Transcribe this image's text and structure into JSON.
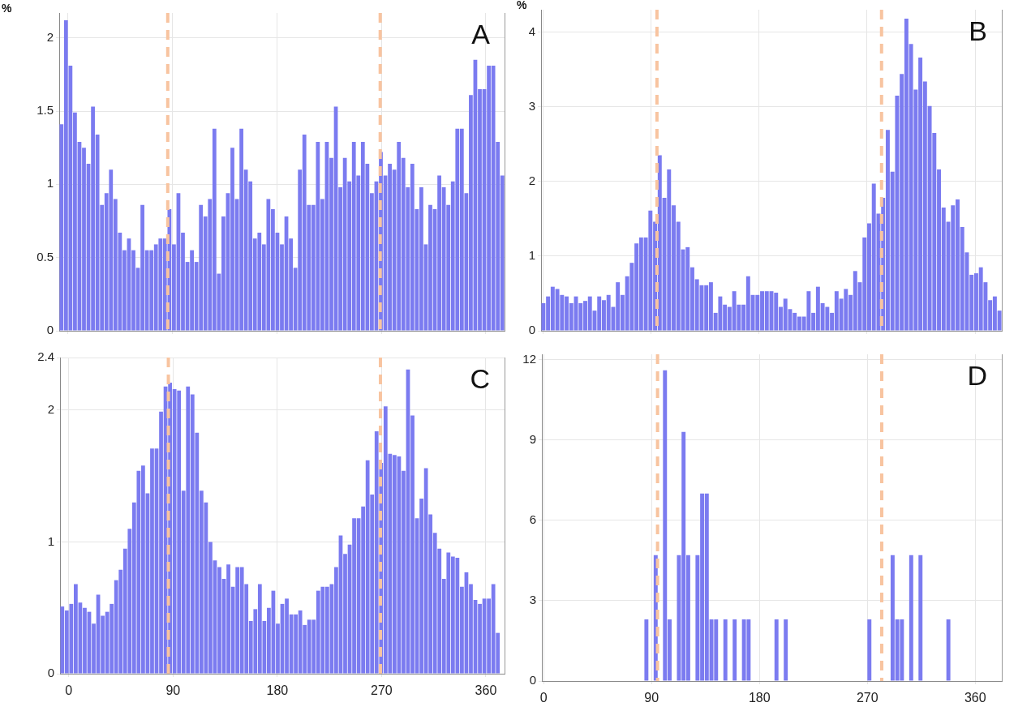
{
  "chart_data": [
    {
      "type": "histogram",
      "ylabel": "%",
      "annotations": [
        "A"
      ],
      "color": "#7b7bf0",
      "grid": true,
      "tick_labels": "y",
      "xlim": [
        -7.5,
        376.125
      ],
      "xticks": [
        0,
        90,
        180,
        270,
        360
      ],
      "ylim": [
        0,
        2.17
      ],
      "yticks": [
        0,
        0.5,
        1,
        1.5,
        2
      ],
      "ref_lines": [
        {
          "axis": "x",
          "value": 86,
          "color": "#f8c4a0",
          "line_style": "dashed"
        },
        {
          "axis": "x",
          "value": 269,
          "color": "#f8c4a0",
          "line_style": "dashed"
        }
      ],
      "bins": [
        -7.5,
        -3.625,
        0.25,
        4.125,
        8,
        11.875,
        15.75,
        19.625,
        23.5,
        27.375,
        31.25,
        35.125,
        39,
        42.875,
        46.75,
        50.625,
        54.5,
        58.375,
        62.25,
        66.125,
        70,
        73.875,
        77.75,
        81.625,
        85.5,
        89.375,
        93.25,
        97.125,
        101,
        104.875,
        108.75,
        112.625,
        116.5,
        120.375,
        124.25,
        128.125,
        132,
        135.875,
        139.75,
        143.625,
        147.5,
        151.375,
        155.25,
        159.125,
        163,
        166.875,
        170.75,
        174.625,
        178.5,
        182.375,
        186.25,
        190.125,
        194,
        197.875,
        201.75,
        205.625,
        209.5,
        213.375,
        217.25,
        221.125,
        225,
        228.875,
        232.75,
        236.625,
        240.5,
        244.375,
        248.25,
        252.125,
        256,
        259.875,
        263.75,
        267.625,
        271.5,
        275.375,
        279.25,
        283.125,
        287,
        290.875,
        294.75,
        298.625,
        302.5,
        306.375,
        310.25,
        314.125,
        318,
        321.875,
        325.75,
        329.625,
        333.5,
        337.375,
        341.25,
        345.125,
        349,
        352.875,
        356.75,
        360.625,
        364.5,
        368.375,
        372.25,
        376.125
      ],
      "values": [
        1.41,
        2.12,
        1.81,
        1.49,
        1.29,
        1.25,
        1.14,
        1.53,
        1.34,
        0.86,
        0.94,
        1.1,
        0.9,
        0.67,
        0.55,
        0.63,
        0.55,
        0.43,
        0.86,
        0.55,
        0.55,
        0.59,
        0.63,
        0.63,
        0.83,
        0.59,
        0.94,
        0.67,
        0.47,
        0.55,
        0.47,
        0.86,
        0.78,
        0.9,
        1.38,
        0.39,
        0.78,
        0.94,
        1.25,
        0.9,
        1.38,
        1.1,
        1.02,
        0.63,
        0.67,
        0.59,
        0.9,
        0.83,
        0.67,
        0.59,
        0.78,
        0.63,
        0.43,
        1.1,
        1.34,
        0.86,
        0.86,
        1.29,
        0.9,
        1.29,
        1.18,
        1.53,
        0.98,
        1.18,
        1.02,
        1.29,
        1.06,
        1.29,
        1.14,
        0.94,
        1.02,
        1.22,
        1.06,
        1.14,
        1.1,
        1.29,
        1.18,
        0.98,
        1.14,
        0.83,
        0.98,
        0.59,
        0.86,
        0.83,
        1.06,
        0.98,
        0.86,
        1.02,
        1.38,
        1.38,
        0.94,
        1.61,
        1.85,
        1.65,
        1.65,
        1.81,
        1.81,
        1.29,
        1.06
      ]
    },
    {
      "type": "histogram",
      "ylabel": "%",
      "annotations": [
        "B"
      ],
      "color": "#7b7bf0",
      "grid": true,
      "tick_labels": "y",
      "xlim": [
        -1.5,
        382.125
      ],
      "xticks": [
        0,
        90,
        180,
        270,
        360
      ],
      "ylim": [
        0,
        4.3
      ],
      "yticks": [
        0,
        1,
        2,
        3,
        4
      ],
      "ref_lines": [
        {
          "axis": "x",
          "value": 95,
          "color": "#f8c4a0",
          "line_style": "dashed"
        },
        {
          "axis": "x",
          "value": 282,
          "color": "#f8c4a0",
          "line_style": "dashed"
        }
      ],
      "bins": [
        -1.5,
        2.375,
        6.25,
        10.125,
        14,
        17.875,
        21.75,
        25.625,
        29.5,
        33.375,
        37.25,
        41.125,
        45,
        48.875,
        52.75,
        56.625,
        60.5,
        64.375,
        68.25,
        72.125,
        76,
        79.875,
        83.75,
        87.625,
        91.5,
        95.375,
        99.25,
        103.125,
        107,
        110.875,
        114.75,
        118.625,
        122.5,
        126.375,
        130.25,
        134.125,
        138,
        141.875,
        145.75,
        149.625,
        153.5,
        157.375,
        161.25,
        165.125,
        169,
        172.875,
        176.75,
        180.625,
        184.5,
        188.375,
        192.25,
        196.125,
        200,
        203.875,
        207.75,
        211.625,
        215.5,
        219.375,
        223.25,
        227.125,
        231,
        234.875,
        238.75,
        242.625,
        246.5,
        250.375,
        254.25,
        258.125,
        262,
        265.875,
        269.75,
        273.625,
        277.5,
        281.375,
        285.25,
        289.125,
        293,
        296.875,
        300.75,
        304.625,
        308.5,
        312.375,
        316.25,
        320.125,
        324,
        327.875,
        331.75,
        335.625,
        339.5,
        343.375,
        347.25,
        351.125,
        355,
        358.875,
        362.75,
        366.625,
        370.5,
        374.375,
        378.25,
        382.125
      ],
      "values": [
        0.37,
        0.46,
        0.59,
        0.56,
        0.48,
        0.46,
        0.37,
        0.46,
        0.37,
        0.4,
        0.46,
        0.27,
        0.46,
        0.41,
        0.48,
        0.32,
        0.65,
        0.48,
        0.73,
        0.91,
        1.17,
        1.25,
        1.25,
        1.61,
        1.46,
        2.35,
        1.78,
        2.16,
        1.68,
        1.46,
        1.09,
        1.12,
        0.85,
        0.69,
        0.61,
        0.61,
        0.65,
        0.24,
        0.46,
        0.35,
        0.32,
        0.53,
        0.35,
        0.35,
        0.73,
        0.48,
        0.48,
        0.53,
        0.53,
        0.53,
        0.51,
        0.32,
        0.43,
        0.29,
        0.24,
        0.19,
        0.19,
        0.53,
        0.24,
        0.59,
        0.37,
        0.32,
        0.24,
        0.53,
        0.43,
        0.56,
        0.48,
        0.8,
        0.65,
        1.25,
        1.44,
        1.97,
        1.57,
        1.78,
        2.69,
        2.13,
        3.15,
        3.44,
        4.18,
        3.84,
        3.23,
        3.66,
        3.34,
        3.01,
        2.65,
        2.16,
        1.65,
        1.46,
        1.68,
        1.76,
        1.39,
        1.05,
        0.75,
        0.77,
        0.85,
        0.65,
        0.41,
        0.46,
        0.27
      ]
    },
    {
      "type": "histogram",
      "annotations": [
        "C"
      ],
      "color": "#7b7bf0",
      "grid": true,
      "xlim": [
        -7.5,
        376.125
      ],
      "xticks": [
        0,
        90,
        180,
        270,
        360
      ],
      "ylim": [
        0,
        2.4
      ],
      "yticks": [
        0,
        1,
        2,
        2.4
      ],
      "ref_lines": [
        {
          "axis": "x",
          "value": 86,
          "color": "#f8c4a0",
          "line_style": "dashed"
        },
        {
          "axis": "x",
          "value": 269,
          "color": "#f8c4a0",
          "line_style": "dashed"
        }
      ],
      "bins": [
        -7.5,
        -3.625,
        0.25,
        4.125,
        8,
        11.875,
        15.75,
        19.625,
        23.5,
        27.375,
        31.25,
        35.125,
        39,
        42.875,
        46.75,
        50.625,
        54.5,
        58.375,
        62.25,
        66.125,
        70,
        73.875,
        77.75,
        81.625,
        85.5,
        89.375,
        93.25,
        97.125,
        101,
        104.875,
        108.75,
        112.625,
        116.5,
        120.375,
        124.25,
        128.125,
        132,
        135.875,
        139.75,
        143.625,
        147.5,
        151.375,
        155.25,
        159.125,
        163,
        166.875,
        170.75,
        174.625,
        178.5,
        182.375,
        186.25,
        190.125,
        194,
        197.875,
        201.75,
        205.625,
        209.5,
        213.375,
        217.25,
        221.125,
        225,
        228.875,
        232.75,
        236.625,
        240.5,
        244.375,
        248.25,
        252.125,
        256,
        259.875,
        263.75,
        267.625,
        271.5,
        275.375,
        279.25,
        283.125,
        287,
        290.875,
        294.75,
        298.625,
        302.5,
        306.375,
        310.25,
        314.125,
        318,
        321.875,
        325.75,
        329.625,
        333.5,
        337.375,
        341.25,
        345.125,
        349,
        352.875,
        356.75,
        360.625,
        364.5,
        368.375,
        372.25
      ],
      "values": [
        0.51,
        0.48,
        0.53,
        0.68,
        0.54,
        0.5,
        0.47,
        0.38,
        0.6,
        0.44,
        0.47,
        0.53,
        0.71,
        0.79,
        0.95,
        1.1,
        1.3,
        1.54,
        1.58,
        1.37,
        1.71,
        1.71,
        1.99,
        2.18,
        2.21,
        2.16,
        2.15,
        1.39,
        2.18,
        2.12,
        1.83,
        1.39,
        1.3,
        1.0,
        0.86,
        0.81,
        0.72,
        0.83,
        0.66,
        0.81,
        0.81,
        0.68,
        0.4,
        0.49,
        0.68,
        0.4,
        0.5,
        0.63,
        0.38,
        0.53,
        0.57,
        0.45,
        0.45,
        0.48,
        0.37,
        0.41,
        0.41,
        0.63,
        0.66,
        0.66,
        0.68,
        0.81,
        1.05,
        0.91,
        0.98,
        1.18,
        1.18,
        1.27,
        1.62,
        1.36,
        1.84,
        1.6,
        2.03,
        1.67,
        1.66,
        1.65,
        1.54,
        2.31,
        1.96,
        1.18,
        1.33,
        1.56,
        1.21,
        1.07,
        0.95,
        0.72,
        0.92,
        0.89,
        0.88,
        0.66,
        0.77,
        0.68,
        0.56,
        0.53,
        0.57,
        0.57,
        0.68,
        0.31
      ]
    },
    {
      "type": "histogram",
      "annotations": [
        "D"
      ],
      "color": "#7b7bf0",
      "grid": true,
      "xlim": [
        -1.5,
        382.125
      ],
      "xticks": [
        0,
        90,
        180,
        270,
        360
      ],
      "ylim": [
        0,
        12.2
      ],
      "yticks": [
        0,
        3,
        6,
        9,
        12
      ],
      "ref_lines": [
        {
          "axis": "x",
          "value": 95,
          "color": "#f8c4a0",
          "line_style": "dashed"
        },
        {
          "axis": "x",
          "value": 282,
          "color": "#f8c4a0",
          "line_style": "dashed"
        }
      ],
      "bins": [
        -1.5,
        2.375,
        6.25,
        10.125,
        14,
        17.875,
        21.75,
        25.625,
        29.5,
        33.375,
        37.25,
        41.125,
        45,
        48.875,
        52.75,
        56.625,
        60.5,
        64.375,
        68.25,
        72.125,
        76,
        79.875,
        83.75,
        87.625,
        91.5,
        95.375,
        99.25,
        103.125,
        107,
        110.875,
        114.75,
        118.625,
        122.5,
        126.375,
        130.25,
        134.125,
        138,
        141.875,
        145.75,
        149.625,
        153.5,
        157.375,
        161.25,
        165.125,
        169,
        172.875,
        176.75,
        180.625,
        184.5,
        188.375,
        192.25,
        196.125,
        200,
        203.875,
        207.75,
        211.625,
        215.5,
        219.375,
        223.25,
        227.125,
        231,
        234.875,
        238.75,
        242.625,
        246.5,
        250.375,
        254.25,
        258.125,
        262,
        265.875,
        269.75,
        273.625,
        277.5,
        281.375,
        285.25,
        289.125,
        293,
        296.875,
        300.75,
        304.625,
        308.5,
        312.375,
        316.25,
        320.125,
        324,
        327.875,
        331.75,
        335.625,
        339.5,
        343.375,
        347.25,
        351.125,
        355,
        358.875,
        362.75,
        366.625,
        370.5,
        374.375,
        378.25,
        382.125
      ],
      "values": [
        0,
        0,
        0,
        0,
        0,
        0,
        0,
        0,
        0,
        0,
        0,
        0,
        0,
        0,
        0,
        0,
        0,
        0,
        0,
        0,
        0,
        0,
        2.3,
        0,
        4.7,
        0,
        11.6,
        2.3,
        0,
        4.7,
        9.3,
        4.7,
        0,
        4.7,
        7.0,
        7.0,
        2.3,
        2.3,
        0,
        2.3,
        0,
        2.3,
        0,
        2.3,
        2.3,
        0,
        0,
        0,
        0,
        0,
        2.3,
        0,
        2.3,
        0,
        0,
        0,
        0,
        0,
        0,
        0,
        0,
        0,
        0,
        0,
        0,
        0,
        0,
        0,
        0,
        0,
        2.3,
        0,
        0,
        0,
        0,
        4.7,
        2.3,
        2.3,
        0,
        4.7,
        0,
        4.7,
        0,
        0,
        0,
        0,
        0,
        2.3,
        0,
        0,
        0,
        0,
        0,
        0,
        0,
        0,
        0,
        0,
        0
      ]
    }
  ]
}
